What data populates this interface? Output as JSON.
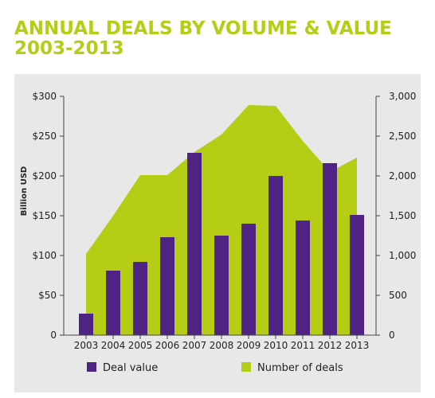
{
  "title_line1": "ANNUAL DEALS BY VOLUME & VALUE",
  "title_line2": "2003-2013",
  "colors": {
    "bar": "#4e2383",
    "area": "#b5cd14",
    "title": "#b5cd14",
    "panel": "#e8e8e8"
  },
  "chart_data": {
    "type": "bar",
    "title": "ANNUAL DEALS BY VOLUME & VALUE 2003-2013",
    "categories": [
      "2003",
      "2004",
      "2005",
      "2006",
      "2007",
      "2008",
      "2009",
      "2010",
      "2011",
      "2012",
      "2013"
    ],
    "ylabel": "Billion USD",
    "ylim": [
      0,
      300
    ],
    "y2lim": [
      0,
      3000
    ],
    "y_ticks": [
      "0",
      "$50",
      "$100",
      "$150",
      "$200",
      "$250",
      "$300"
    ],
    "y2_ticks": [
      "0",
      "500",
      "1,000",
      "1,500",
      "2,000",
      "2,500",
      "3,000"
    ],
    "grid": false,
    "legend_position": "bottom",
    "series": [
      {
        "name": "Deal value",
        "type": "bar",
        "axis": "left",
        "values": [
          27,
          81,
          92,
          123,
          229,
          125,
          140,
          200,
          144,
          216,
          151
        ]
      },
      {
        "name": "Number of deals",
        "type": "area",
        "axis": "right",
        "values": [
          1020,
          1500,
          2010,
          2010,
          2300,
          2520,
          2890,
          2880,
          2440,
          2050,
          2230
        ]
      }
    ]
  }
}
